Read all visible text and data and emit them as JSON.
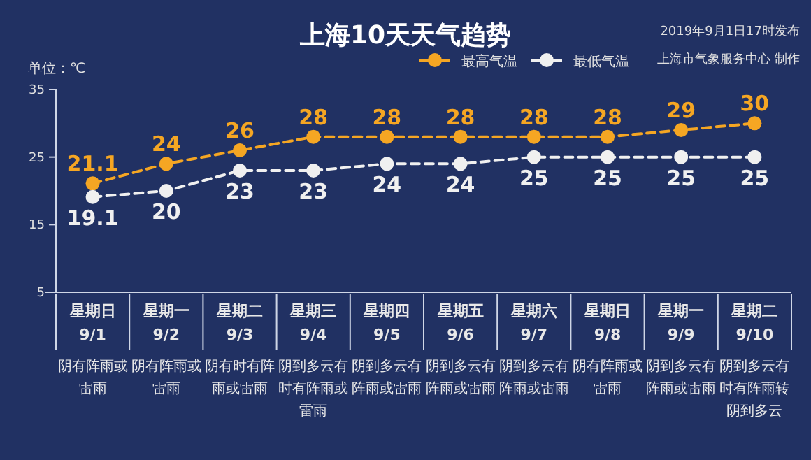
{
  "chart_data": {
    "type": "line",
    "title": "上海10天天气趋势",
    "subtitle": "2019年9月1日17时发布",
    "ylabel": "单位：℃",
    "categories": [
      "星期日\n9/1",
      "星期一\n9/2",
      "星期二\n9/3",
      "星期三\n9/4",
      "星期四\n9/5",
      "星期五\n9/6",
      "星期六\n9/7",
      "星期日\n9/8",
      "星期一\n9/9",
      "星期二\n9/10"
    ],
    "series": [
      {
        "name": "最高气温",
        "color": "#f5a623",
        "values": [
          21.1,
          24,
          26,
          28,
          28,
          28,
          28,
          28,
          29,
          30
        ]
      },
      {
        "name": "最低气温",
        "color": "#f0f0f0",
        "values": [
          19.1,
          20,
          23,
          23,
          24,
          24,
          25,
          25,
          25,
          25
        ]
      }
    ],
    "ylim": [
      5,
      35
    ],
    "yticks": [
      5,
      15,
      25,
      35
    ],
    "grid": false,
    "legend": "top",
    "marker": "circle",
    "line_style": "dashed",
    "data_labels": true,
    "annotations": [
      "上海市气象服务中心 制作",
      "阴有阵雨或雷雨",
      "阴有阵雨或雷雨",
      "阴有时有阵雨或雷雨",
      "阴到多云有时有阵雨或雷雨",
      "阴到多云有阵雨或雷雨",
      "阴到多云有阵雨或雷雨",
      "阴到多云有阵雨或雷雨",
      "阴有阵雨或雷雨",
      "阴到多云有阵雨或雷雨",
      "阴到多云有时有阵雨转阴到多云"
    ]
  }
}
